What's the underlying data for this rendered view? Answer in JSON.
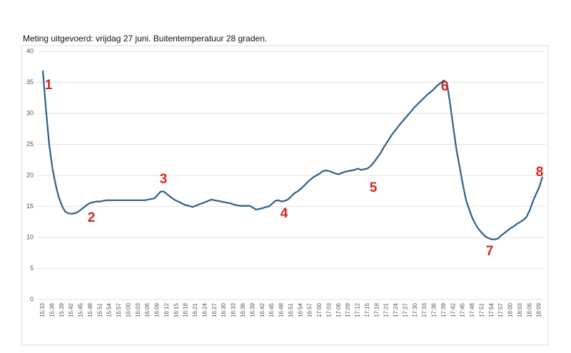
{
  "chart_data": {
    "type": "line",
    "title": "Meting uitgevoerd: vrijdag 27 juni. Buitentemperatuur 28 graden.",
    "categories": [
      "15:33",
      null,
      null,
      "15:36",
      null,
      null,
      "15:39",
      null,
      null,
      "15:42",
      null,
      null,
      "15:45",
      null,
      null,
      "15:48",
      null,
      null,
      "15:51",
      null,
      null,
      "15:54",
      null,
      null,
      "15:57",
      null,
      null,
      "16:00",
      null,
      null,
      "16:03",
      null,
      null,
      "16:06",
      null,
      null,
      "16:09",
      null,
      null,
      "16:12",
      null,
      null,
      "16:15",
      null,
      null,
      "16:18",
      null,
      null,
      "16:21",
      null,
      null,
      "16:24",
      null,
      null,
      "16:27",
      null,
      null,
      "16:30",
      null,
      null,
      "16:33",
      null,
      null,
      "16:36",
      null,
      null,
      "16:39",
      null,
      null,
      "16:42",
      null,
      null,
      "16:45",
      null,
      null,
      "16:48",
      null,
      null,
      "16:51",
      null,
      null,
      "16:54",
      null,
      null,
      "16:57",
      null,
      null,
      "17:00",
      null,
      null,
      "17:03",
      null,
      null,
      "17:06",
      null,
      null,
      "17:09",
      null,
      null,
      "17:12",
      null,
      null,
      "17:15",
      null,
      null,
      "17:18",
      null,
      null,
      "17:21",
      null,
      null,
      "17:24",
      null,
      null,
      "17:27",
      null,
      null,
      "17:30",
      null,
      null,
      "17:33",
      null,
      null,
      "17:36",
      null,
      null,
      "17:39",
      null,
      null,
      "17:42",
      null,
      null,
      "17:45",
      null,
      null,
      "17:48",
      null,
      null,
      "17:51",
      null,
      null,
      "17:54",
      null,
      null,
      "17:57",
      null,
      null,
      "18:00",
      null,
      null,
      "18:03",
      null,
      null,
      "18:06",
      null,
      null,
      "18:09",
      null
    ],
    "series": [
      {
        "color": "#2d5f87",
        "values": [
          36.9,
          30.5,
          25,
          21.2,
          18.6,
          16.5,
          15.1,
          14.2,
          13.9,
          13.8,
          13.9,
          14.1,
          14.5,
          14.9,
          15.3,
          15.6,
          15.7,
          15.8,
          15.8,
          15.9,
          16,
          16,
          16,
          16,
          16,
          16,
          16,
          16,
          16,
          16,
          16,
          16,
          16,
          16.1,
          16.2,
          16.3,
          16.8,
          17.4,
          17.4,
          17,
          16.6,
          16.2,
          15.9,
          15.7,
          15.4,
          15.2,
          15.1,
          14.9,
          15.1,
          15.3,
          15.5,
          15.7,
          15.9,
          16.1,
          16,
          15.9,
          15.8,
          15.7,
          15.6,
          15.5,
          15.3,
          15.2,
          15.1,
          15.1,
          15.1,
          15.1,
          14.8,
          14.5,
          14.6,
          14.7,
          14.9,
          15,
          15.4,
          15.9,
          16,
          15.8,
          15.9,
          16.1,
          16.6,
          17.1,
          17.4,
          17.8,
          18.3,
          18.8,
          19.3,
          19.7,
          20,
          20.3,
          20.7,
          20.8,
          20.7,
          20.5,
          20.3,
          20.2,
          20.4,
          20.6,
          20.7,
          20.8,
          20.9,
          21.1,
          20.9,
          21,
          21.1,
          21.5,
          22.1,
          22.8,
          23.5,
          24.4,
          25.2,
          26,
          26.8,
          27.4,
          28.1,
          28.7,
          29.3,
          29.9,
          30.5,
          31.1,
          31.6,
          32.1,
          32.6,
          33.1,
          33.5,
          34,
          34.5,
          34.9,
          35.3,
          34.9,
          31.5,
          27.7,
          24.1,
          21.3,
          18.5,
          16,
          14.5,
          13.1,
          12.1,
          11.3,
          10.7,
          10.2,
          9.9,
          9.7,
          9.7,
          9.8,
          10.3,
          10.7,
          11.1,
          11.5,
          11.8,
          12.2,
          12.5,
          12.8,
          13.3,
          14.4,
          15.8,
          17,
          18.1,
          19.8
        ]
      }
    ],
    "ylim": [
      0,
      40
    ],
    "yticks": [
      0,
      5,
      10,
      15,
      20,
      25,
      30,
      35,
      40
    ],
    "grid": true,
    "annotations": [
      "1",
      "2",
      "3",
      "4",
      "5",
      "6",
      "7",
      "8"
    ]
  }
}
